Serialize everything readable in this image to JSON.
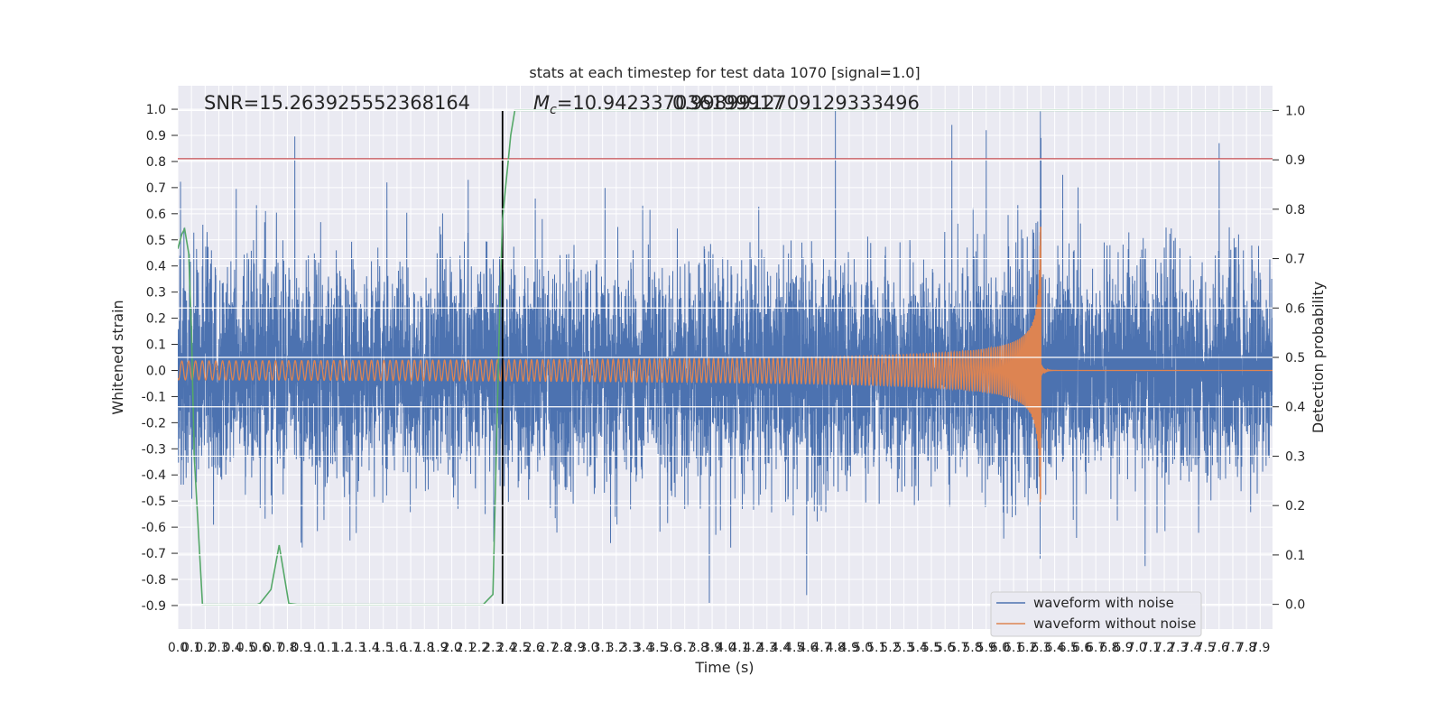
{
  "chart_data": {
    "type": "line",
    "title": "stats at each timestep for test data 1070 [signal=1.0]",
    "xlabel": "Time (s)",
    "ylabel": "Whitened strain",
    "y2label": "Detection probability",
    "xlim": [
      0,
      7.99
    ],
    "ylim": [
      -0.99,
      1.09
    ],
    "y2lim": [
      -0.05,
      1.05
    ],
    "xticks": [
      0.0,
      0.1,
      0.2,
      0.3,
      0.4,
      0.5,
      0.6,
      0.7,
      0.8,
      0.9,
      1.0,
      1.1,
      1.2,
      1.3,
      1.4,
      1.5,
      1.6,
      1.7,
      1.8,
      1.9,
      2.0,
      2.1,
      2.2,
      2.3,
      2.4,
      2.5,
      2.6,
      2.7,
      2.8,
      2.9,
      3.0,
      3.1,
      3.2,
      3.3,
      3.4,
      3.5,
      3.6,
      3.7,
      3.8,
      3.9,
      4.0,
      4.1,
      4.2,
      4.3,
      4.4,
      4.5,
      4.6,
      4.7,
      4.8,
      4.9,
      5.0,
      5.1,
      5.2,
      5.3,
      5.4,
      5.5,
      5.6,
      5.7,
      5.8,
      5.9,
      6.0,
      6.1,
      6.2,
      6.3,
      6.4,
      6.5,
      6.6,
      6.7,
      6.8,
      6.9,
      7.0,
      7.1,
      7.2,
      7.3,
      7.4,
      7.5,
      7.6,
      7.7,
      7.8,
      7.9
    ],
    "yticks": [
      1.0,
      0.9,
      0.8,
      0.7,
      0.6,
      0.5,
      0.4,
      0.3,
      0.2,
      0.1,
      0.0,
      -0.1,
      -0.2,
      -0.3,
      -0.4,
      -0.5,
      -0.6,
      -0.7,
      -0.8,
      -0.9
    ],
    "y2ticks": [
      1.0,
      0.9,
      0.8,
      0.7,
      0.6,
      0.5,
      0.4,
      0.3,
      0.2,
      0.1,
      0.0
    ],
    "grid": true,
    "legend_position": "lower-right",
    "legend": [
      "waveform with noise",
      "waveform without noise"
    ],
    "annotations": {
      "snr": "SNR=15.263925552368164",
      "mc_symbol": "M",
      "mc_subscript": "c",
      "mc_value": "=10.942337036199917",
      "overlap_value": "0.9989912709129333496"
    },
    "threshold_line": {
      "axis": "y",
      "value": 0.81,
      "color": "#c44e52"
    },
    "trigger_line": {
      "axis": "x",
      "value": 2.37,
      "color": "#000000"
    },
    "series": [
      {
        "name": "waveform with noise",
        "color": "#4c72b0",
        "sample_rate_hz": 1024,
        "description_values": {
          "noise_std": 0.2,
          "spikes": [
            [
              4.8,
              1.0
            ],
            [
              5.65,
              0.94
            ],
            [
              5.9,
              0.92
            ],
            [
              6.3,
              0.89
            ],
            [
              7.6,
              0.87
            ],
            [
              3.88,
              -0.89
            ],
            [
              4.59,
              -0.86
            ]
          ]
        }
      },
      {
        "name": "waveform without noise",
        "color": "#dd8452",
        "merger_time": 6.3,
        "peak_amplitude": 0.56,
        "peak_negative": -0.5
      },
      {
        "name": "detection probability",
        "axis": "y2",
        "color": "#55a868",
        "x": [
          0.0,
          0.03,
          0.05,
          0.08,
          0.1,
          0.12,
          0.18,
          0.58,
          0.6,
          0.68,
          0.74,
          0.81,
          0.87,
          2.23,
          2.3,
          2.35,
          2.37,
          2.43,
          2.46,
          7.99
        ],
        "y": [
          0.72,
          0.75,
          0.76,
          0.71,
          0.55,
          0.3,
          0.0,
          0.0,
          0.002,
          0.03,
          0.12,
          0.002,
          0.0,
          0.0,
          0.02,
          0.6,
          0.78,
          0.95,
          1.0,
          1.0
        ]
      }
    ]
  }
}
